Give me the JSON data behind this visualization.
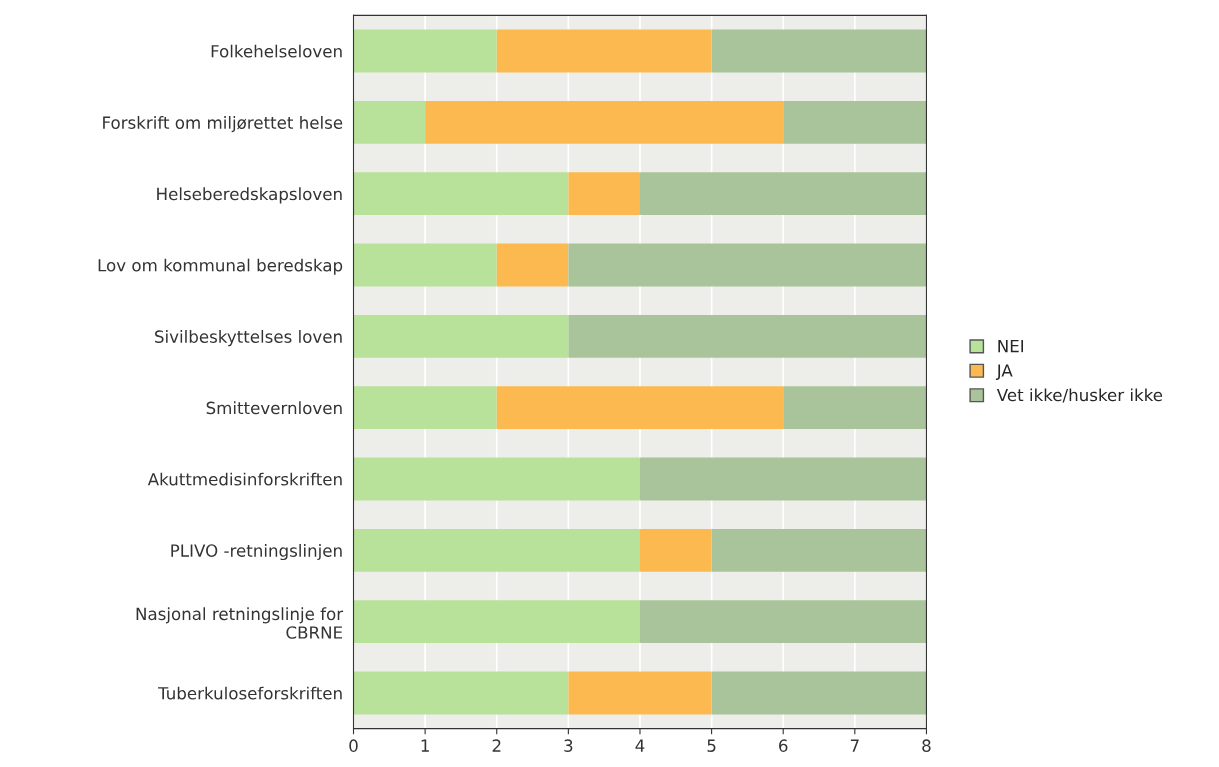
{
  "chart_data": {
    "type": "bar",
    "orientation": "horizontal",
    "stacked": true,
    "categories": [
      "Folkehelseloven",
      "Forskrift om miljørettet helse",
      "Helseberedskapsloven",
      "Lov om kommunal beredskap",
      "Sivilbeskyttelses loven",
      "Smittevernloven",
      "Akuttmedisinforskriften",
      "PLIVO -retningslinjen",
      "Nasjonal retningslinje for\nCBRNE",
      "Tuberkuloseforskriften"
    ],
    "series": [
      {
        "name": "NEI",
        "color": "#b8e29a",
        "values": [
          2,
          1,
          3,
          2,
          3,
          2,
          4,
          4,
          4,
          3
        ]
      },
      {
        "name": "JA",
        "color": "#fbb950",
        "values": [
          3,
          5,
          1,
          1,
          0,
          4,
          0,
          1,
          0,
          2
        ]
      },
      {
        "name": "Vet ikke/husker ikke",
        "color": "#a9c49a",
        "values": [
          3,
          2,
          4,
          5,
          5,
          2,
          4,
          3,
          4,
          3
        ]
      }
    ],
    "xlim": [
      0,
      8
    ],
    "xticks": [
      0,
      1,
      2,
      3,
      4,
      5,
      6,
      7,
      8
    ],
    "grid": "x",
    "legend": "right"
  }
}
